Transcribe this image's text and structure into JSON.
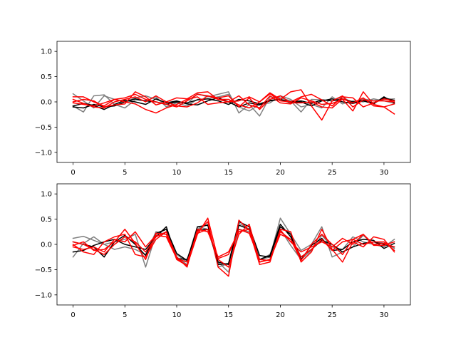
{
  "chart_data": [
    {
      "type": "line",
      "xlim": [
        -1.55,
        32.55
      ],
      "ylim": [
        -1.2,
        1.2
      ],
      "xticks": [
        0,
        5,
        10,
        15,
        20,
        25,
        30
      ],
      "yticks": [
        -1.0,
        -0.5,
        0.0,
        0.5,
        1.0
      ],
      "xtick_labels": [
        "0",
        "5",
        "10",
        "15",
        "20",
        "25",
        "30"
      ],
      "ytick_labels": [
        "−1.0",
        "−0.5",
        "0.0",
        "0.5",
        "1.0"
      ],
      "grid": false,
      "series": [
        {
          "color": "#808080",
          "values": [
            0.16,
            0.02,
            -0.12,
            0.12,
            0.05,
            0.0,
            0.08,
            0.12,
            0.05,
            -0.02,
            0.0,
            -0.04,
            0.16,
            0.1,
            0.15,
            0.2,
            -0.22,
            -0.05,
            -0.28,
            0.1,
            0.08,
            0.02,
            -0.2,
            0.05,
            0.04,
            0.02,
            0.1,
            -0.03,
            0.06,
            0.02,
            0.05,
            0.06
          ]
        },
        {
          "color": "#808080",
          "values": [
            -0.08,
            -0.2,
            0.12,
            0.14,
            -0.05,
            -0.12,
            0.04,
            0.02,
            0.1,
            -0.1,
            -0.02,
            -0.08,
            0.05,
            0.06,
            0.1,
            0.15,
            -0.1,
            -0.18,
            -0.05,
            -0.02,
            0.12,
            0.05,
            -0.1,
            -0.05,
            -0.12,
            0.1,
            -0.04,
            0.02,
            0.0,
            0.06,
            0.02,
            -0.03
          ]
        },
        {
          "color": "#000000",
          "values": [
            -0.1,
            -0.12,
            -0.05,
            -0.1,
            -0.08,
            0.0,
            0.06,
            0.02,
            0.0,
            -0.05,
            0.0,
            -0.02,
            0.04,
            0.06,
            0.02,
            -0.05,
            0.05,
            0.02,
            -0.04,
            0.03,
            0.05,
            0.0,
            0.02,
            -0.03,
            0.04,
            0.02,
            0.06,
            0.0,
            0.03,
            -0.02,
            0.08,
            0.03
          ]
        },
        {
          "color": "#000000",
          "values": [
            -0.08,
            -0.03,
            -0.07,
            -0.15,
            -0.05,
            0.03,
            0.0,
            -0.05,
            0.06,
            -0.02,
            0.02,
            -0.04,
            -0.06,
            0.02,
            0.08,
            0.0,
            -0.1,
            -0.02,
            -0.06,
            0.02,
            0.05,
            -0.02,
            0.0,
            -0.08,
            0.02,
            0.06,
            0.0,
            -0.03,
            0.02,
            -0.04,
            0.1,
            -0.02
          ]
        },
        {
          "color": "#ff0000",
          "values": [
            0.1,
            0.1,
            0.0,
            -0.08,
            0.05,
            0.08,
            0.15,
            0.05,
            0.0,
            -0.05,
            -0.1,
            0.02,
            0.15,
            0.12,
            0.05,
            0.0,
            0.02,
            0.1,
            0.0,
            0.18,
            0.05,
            0.2,
            0.24,
            -0.08,
            -0.36,
            0.02,
            0.12,
            -0.1,
            0.04,
            0.02,
            0.02,
            0.0
          ]
        },
        {
          "color": "#ff0000",
          "values": [
            -0.02,
            -0.05,
            -0.08,
            -0.02,
            0.05,
            0.0,
            -0.04,
            -0.15,
            -0.22,
            -0.12,
            -0.05,
            0.05,
            0.1,
            -0.05,
            -0.02,
            0.0,
            0.12,
            -0.06,
            -0.12,
            0.12,
            -0.02,
            -0.04,
            0.08,
            0.02,
            -0.05,
            -0.03,
            0.05,
            -0.18,
            0.2,
            -0.05,
            -0.1,
            -0.24
          ]
        },
        {
          "color": "#ff0000",
          "values": [
            0.05,
            -0.03,
            -0.1,
            -0.12,
            0.0,
            0.05,
            0.1,
            0.0,
            0.12,
            0.0,
            -0.08,
            -0.1,
            -0.02,
            0.12,
            0.08,
            0.12,
            -0.1,
            0.08,
            -0.15,
            0.05,
            0.12,
            -0.02,
            -0.02,
            0.0,
            -0.1,
            -0.12,
            0.06,
            -0.02,
            0.08,
            -0.08,
            -0.1,
            -0.04
          ]
        },
        {
          "color": "#ff0000",
          "values": [
            0.0,
            0.05,
            0.02,
            -0.1,
            -0.06,
            -0.04,
            0.2,
            0.1,
            -0.06,
            0.0,
            0.08,
            0.06,
            0.18,
            0.2,
            0.05,
            0.05,
            -0.06,
            -0.12,
            0.0,
            0.16,
            0.02,
            0.0,
            0.1,
            0.15,
            0.04,
            -0.08,
            0.1,
            0.08,
            -0.1,
            -0.02,
            0.06,
            0.02
          ]
        }
      ]
    },
    {
      "type": "line",
      "xlim": [
        -1.55,
        32.55
      ],
      "ylim": [
        -1.2,
        1.2
      ],
      "xticks": [
        0,
        5,
        10,
        15,
        20,
        25,
        30
      ],
      "yticks": [
        -1.0,
        -0.5,
        0.0,
        0.5,
        1.0
      ],
      "xtick_labels": [
        "0",
        "5",
        "10",
        "15",
        "20",
        "25",
        "30"
      ],
      "ytick_labels": [
        "−1.0",
        "−0.5",
        "0.0",
        "0.5",
        "1.0"
      ],
      "grid": false,
      "series": [
        {
          "color": "#808080",
          "values": [
            0.12,
            0.16,
            0.08,
            0.0,
            0.05,
            0.1,
            0.2,
            -0.45,
            0.2,
            0.3,
            -0.25,
            -0.4,
            0.35,
            0.3,
            -0.35,
            -0.55,
            0.3,
            0.25,
            -0.3,
            -0.25,
            0.52,
            0.2,
            -0.12,
            0.0,
            0.35,
            -0.25,
            -0.15,
            -0.05,
            0.18,
            0.0,
            -0.05,
            0.1
          ]
        },
        {
          "color": "#808080",
          "values": [
            -0.25,
            0.02,
            0.15,
            0.0,
            -0.1,
            -0.05,
            -0.1,
            -0.2,
            0.25,
            0.2,
            -0.2,
            -0.35,
            0.3,
            0.4,
            -0.45,
            -0.38,
            0.42,
            0.3,
            -0.3,
            -0.2,
            0.3,
            -0.02,
            -0.3,
            -0.12,
            0.18,
            -0.05,
            -0.1,
            0.15,
            0.05,
            0.0,
            0.05,
            -0.08
          ]
        },
        {
          "color": "#000000",
          "values": [
            0.05,
            0.0,
            -0.05,
            -0.25,
            0.05,
            0.18,
            0.0,
            -0.22,
            0.22,
            0.3,
            -0.18,
            -0.32,
            0.35,
            0.38,
            -0.4,
            -0.38,
            0.45,
            0.35,
            -0.22,
            -0.25,
            0.35,
            0.2,
            -0.3,
            -0.02,
            0.12,
            -0.12,
            -0.1,
            0.05,
            0.1,
            0.08,
            -0.08,
            0.02
          ]
        },
        {
          "color": "#000000",
          "values": [
            -0.15,
            -0.12,
            -0.02,
            0.05,
            0.1,
            0.0,
            -0.05,
            -0.1,
            0.15,
            0.35,
            -0.28,
            -0.3,
            0.28,
            0.3,
            -0.35,
            -0.4,
            0.38,
            0.3,
            -0.3,
            -0.22,
            0.4,
            0.15,
            -0.25,
            -0.1,
            0.08,
            0.0,
            -0.15,
            -0.05,
            0.02,
            0.05,
            0.0,
            -0.05
          ]
        },
        {
          "color": "#ff0000",
          "values": [
            -0.02,
            0.05,
            -0.12,
            -0.1,
            0.05,
            0.3,
            0.02,
            -0.3,
            0.22,
            0.2,
            -0.28,
            -0.42,
            0.25,
            0.45,
            -0.45,
            -0.63,
            0.48,
            0.28,
            -0.4,
            -0.35,
            0.3,
            0.25,
            -0.35,
            -0.15,
            0.3,
            -0.1,
            -0.35,
            0.05,
            -0.05,
            0.15,
            0.1,
            -0.15
          ]
        },
        {
          "color": "#ff0000",
          "values": [
            0.0,
            -0.15,
            -0.2,
            0.05,
            0.15,
            0.2,
            -0.2,
            -0.25,
            0.1,
            0.25,
            -0.3,
            -0.42,
            0.2,
            0.52,
            -0.3,
            -0.45,
            0.2,
            0.4,
            -0.35,
            -0.3,
            0.25,
            0.1,
            -0.32,
            0.0,
            0.2,
            0.0,
            -0.2,
            0.1,
            0.2,
            0.0,
            0.02,
            -0.05
          ]
        },
        {
          "color": "#ff0000",
          "values": [
            0.05,
            0.0,
            -0.1,
            -0.2,
            0.0,
            0.15,
            0.05,
            -0.15,
            0.15,
            0.25,
            -0.25,
            -0.45,
            0.3,
            0.25,
            -0.25,
            -0.15,
            0.25,
            0.3,
            -0.35,
            -0.3,
            0.2,
            0.1,
            -0.25,
            -0.1,
            0.1,
            -0.12,
            0.05,
            0.1,
            0.0,
            0.05,
            0.05,
            -0.12
          ]
        },
        {
          "color": "#ff0000",
          "values": [
            -0.05,
            -0.1,
            -0.05,
            -0.15,
            0.1,
            0.05,
            0.25,
            -0.05,
            0.18,
            0.15,
            -0.28,
            -0.35,
            0.22,
            0.3,
            -0.28,
            -0.2,
            0.3,
            0.22,
            -0.3,
            -0.32,
            0.28,
            0.05,
            -0.15,
            -0.05,
            0.05,
            -0.05,
            0.12,
            0.0,
            0.2,
            -0.02,
            -0.02,
            0.05
          ]
        }
      ]
    }
  ]
}
